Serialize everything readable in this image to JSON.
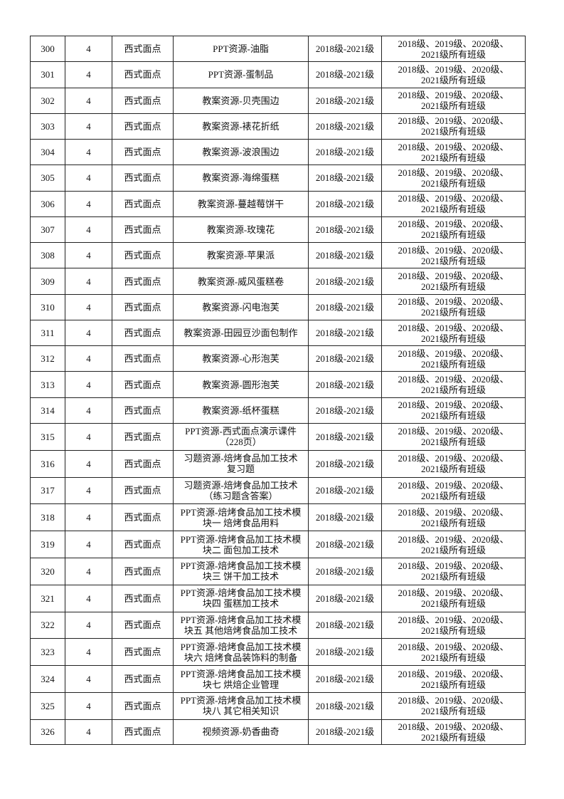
{
  "table": {
    "rows": [
      [
        300,
        4,
        "西式面点",
        "PPT资源-油脂",
        "2018级-2021级",
        [
          "2018级、2019级、2020级、",
          "2021级所有班级"
        ]
      ],
      [
        301,
        4,
        "西式面点",
        "PPT资源-蛋制品",
        "2018级-2021级",
        [
          "2018级、2019级、2020级、",
          "2021级所有班级"
        ]
      ],
      [
        302,
        4,
        "西式面点",
        "教案资源-贝壳围边",
        "2018级-2021级",
        [
          "2018级、2019级、2020级、",
          "2021级所有班级"
        ]
      ],
      [
        303,
        4,
        "西式面点",
        "教案资源-裱花折纸",
        "2018级-2021级",
        [
          "2018级、2019级、2020级、",
          "2021级所有班级"
        ]
      ],
      [
        304,
        4,
        "西式面点",
        "教案资源-波浪围边",
        "2018级-2021级",
        [
          "2018级、2019级、2020级、",
          "2021级所有班级"
        ]
      ],
      [
        305,
        4,
        "西式面点",
        "教案资源-海绵蛋糕",
        "2018级-2021级",
        [
          "2018级、2019级、2020级、",
          "2021级所有班级"
        ]
      ],
      [
        306,
        4,
        "西式面点",
        "教案资源-蔓越莓饼干",
        "2018级-2021级",
        [
          "2018级、2019级、2020级、",
          "2021级所有班级"
        ]
      ],
      [
        307,
        4,
        "西式面点",
        "教案资源-玫瑰花",
        "2018级-2021级",
        [
          "2018级、2019级、2020级、",
          "2021级所有班级"
        ]
      ],
      [
        308,
        4,
        "西式面点",
        "教案资源-苹果派",
        "2018级-2021级",
        [
          "2018级、2019级、2020级、",
          "2021级所有班级"
        ]
      ],
      [
        309,
        4,
        "西式面点",
        "教案资源-威风蛋糕卷",
        "2018级-2021级",
        [
          "2018级、2019级、2020级、",
          "2021级所有班级"
        ]
      ],
      [
        310,
        4,
        "西式面点",
        "教案资源-闪电泡芙",
        "2018级-2021级",
        [
          "2018级、2019级、2020级、",
          "2021级所有班级"
        ]
      ],
      [
        311,
        4,
        "西式面点",
        "教案资源-田园豆沙面包制作",
        "2018级-2021级",
        [
          "2018级、2019级、2020级、",
          "2021级所有班级"
        ]
      ],
      [
        312,
        4,
        "西式面点",
        "教案资源-心形泡芙",
        "2018级-2021级",
        [
          "2018级、2019级、2020级、",
          "2021级所有班级"
        ]
      ],
      [
        313,
        4,
        "西式面点",
        "教案资源-圆形泡芙",
        "2018级-2021级",
        [
          "2018级、2019级、2020级、",
          "2021级所有班级"
        ]
      ],
      [
        314,
        4,
        "西式面点",
        "教案资源-纸杯蛋糕",
        "2018级-2021级",
        [
          "2018级、2019级、2020级、",
          "2021级所有班级"
        ]
      ],
      [
        315,
        4,
        "西式面点",
        [
          "PPT资源-西式面点演示课件",
          "（228页）"
        ],
        "2018级-2021级",
        [
          "2018级、2019级、2020级、",
          "2021级所有班级"
        ]
      ],
      [
        316,
        4,
        "西式面点",
        [
          "习题资源-焙烤食品加工技术",
          "复习题"
        ],
        "2018级-2021级",
        [
          "2018级、2019级、2020级、",
          "2021级所有班级"
        ]
      ],
      [
        317,
        4,
        "西式面点",
        [
          "习题资源-焙烤食品加工技术",
          "（练习题含答案）"
        ],
        "2018级-2021级",
        [
          "2018级、2019级、2020级、",
          "2021级所有班级"
        ]
      ],
      [
        318,
        4,
        "西式面点",
        [
          "PPT资源-焙烤食品加工技术模",
          "块一 焙烤食品用料"
        ],
        "2018级-2021级",
        [
          "2018级、2019级、2020级、",
          "2021级所有班级"
        ]
      ],
      [
        319,
        4,
        "西式面点",
        [
          "PPT资源-焙烤食品加工技术模",
          "块二 面包加工技术"
        ],
        "2018级-2021级",
        [
          "2018级、2019级、2020级、",
          "2021级所有班级"
        ]
      ],
      [
        320,
        4,
        "西式面点",
        [
          "PPT资源-焙烤食品加工技术模",
          "块三 饼干加工技术"
        ],
        "2018级-2021级",
        [
          "2018级、2019级、2020级、",
          "2021级所有班级"
        ]
      ],
      [
        321,
        4,
        "西式面点",
        [
          "PPT资源-焙烤食品加工技术模",
          "块四 蛋糕加工技术"
        ],
        "2018级-2021级",
        [
          "2018级、2019级、2020级、",
          "2021级所有班级"
        ]
      ],
      [
        322,
        4,
        "西式面点",
        [
          "PPT资源-焙烤食品加工技术模",
          "块五 其他焙烤食品加工技术"
        ],
        "2018级-2021级",
        [
          "2018级、2019级、2020级、",
          "2021级所有班级"
        ]
      ],
      [
        323,
        4,
        "西式面点",
        [
          "PPT资源-焙烤食品加工技术模",
          "块六 焙烤食品装饰料的制备"
        ],
        "2018级-2021级",
        [
          "2018级、2019级、2020级、",
          "2021级所有班级"
        ]
      ],
      [
        324,
        4,
        "西式面点",
        [
          "PPT资源-焙烤食品加工技术模",
          "块七 烘焙企业管理"
        ],
        "2018级-2021级",
        [
          "2018级、2019级、2020级、",
          "2021级所有班级"
        ]
      ],
      [
        325,
        4,
        "西式面点",
        [
          "PPT资源-焙烤食品加工技术模",
          "块八 其它相关知识"
        ],
        "2018级-2021级",
        [
          "2018级、2019级、2020级、",
          "2021级所有班级"
        ]
      ],
      [
        326,
        4,
        "西式面点",
        "视频资源-奶香曲奇",
        "2018级-2021级",
        [
          "2018级、2019级、2020级、",
          "2021级所有班级"
        ]
      ]
    ]
  }
}
